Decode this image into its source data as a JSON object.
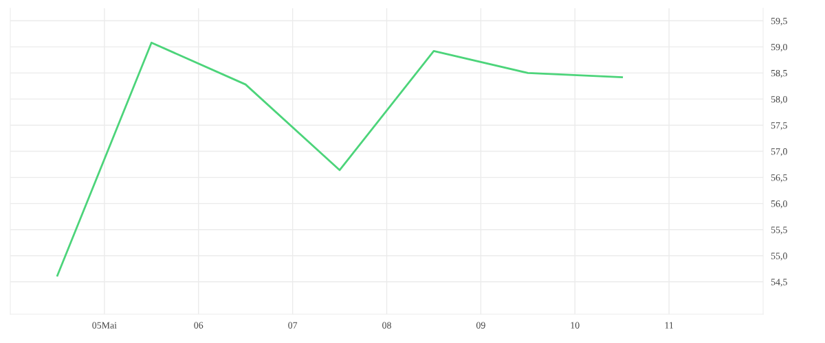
{
  "chart_data": {
    "type": "line",
    "x": [
      4.5,
      5.5,
      6.5,
      7.5,
      8.5,
      9.5,
      10.5
    ],
    "series": [
      {
        "color": "#4cd47a",
        "values": [
          54.62,
          59.08,
          58.28,
          56.64,
          58.92,
          58.5,
          58.42
        ]
      }
    ],
    "xlim": [
      4.0,
      12.0
    ],
    "xticks": [
      {
        "value": 5,
        "label": "05Mai"
      },
      {
        "value": 6,
        "label": "06"
      },
      {
        "value": 7,
        "label": "07"
      },
      {
        "value": 8,
        "label": "08"
      },
      {
        "value": 9,
        "label": "09"
      },
      {
        "value": 10,
        "label": "10"
      },
      {
        "value": 11,
        "label": "11"
      }
    ],
    "ylim": [
      53.88,
      59.74
    ],
    "yticks": [
      {
        "value": 54.5,
        "label": "54,5"
      },
      {
        "value": 55.0,
        "label": "55,0"
      },
      {
        "value": 55.5,
        "label": "55,5"
      },
      {
        "value": 56.0,
        "label": "56,0"
      },
      {
        "value": 56.5,
        "label": "56,5"
      },
      {
        "value": 57.0,
        "label": "57,0"
      },
      {
        "value": 57.5,
        "label": "57,5"
      },
      {
        "value": 58.0,
        "label": "58,0"
      },
      {
        "value": 58.5,
        "label": "58,5"
      },
      {
        "value": 59.0,
        "label": "59,0"
      },
      {
        "value": 59.5,
        "label": "59,5"
      }
    ],
    "grid": true,
    "legend": false,
    "marker": "none",
    "line_style": "solid"
  }
}
